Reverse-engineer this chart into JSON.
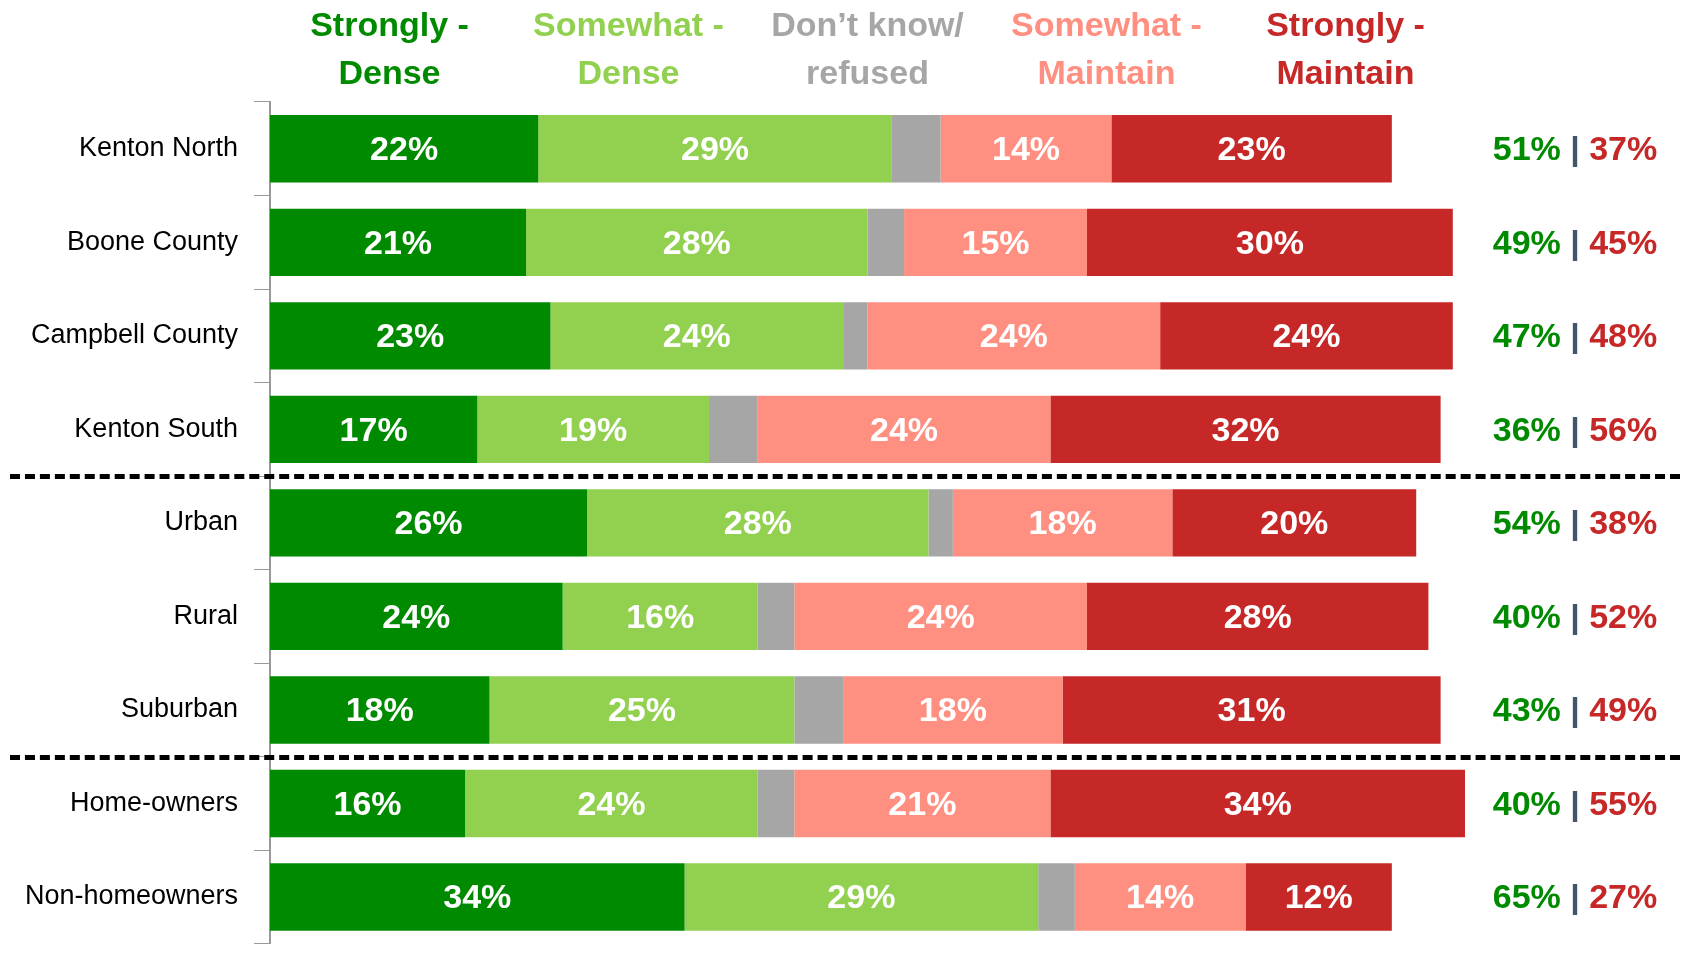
{
  "chart_data": {
    "type": "bar",
    "orientation": "horizontal",
    "stacked": true,
    "legend": "top",
    "tick_labels": "y",
    "grid": false,
    "categories": [
      "Kenton North",
      "Boone County",
      "Campbell County",
      "Kenton South",
      "Urban",
      "Rural",
      "Suburban",
      "Home-owners",
      "Non-homeowners"
    ],
    "series": [
      {
        "name": "Strongly - Dense",
        "color": "#008a00",
        "values": [
          22,
          21,
          23,
          17,
          26,
          24,
          18,
          16,
          34
        ],
        "value_labels": [
          "22%",
          "21%",
          "23%",
          "17%",
          "26%",
          "24%",
          "18%",
          "16%",
          "34%"
        ]
      },
      {
        "name": "Somewhat - Dense",
        "color": "#92d050",
        "values": [
          29,
          28,
          24,
          19,
          28,
          16,
          25,
          24,
          29
        ],
        "value_labels": [
          "29%",
          "28%",
          "24%",
          "19%",
          "28%",
          "16%",
          "25%",
          "24%",
          "29%"
        ]
      },
      {
        "name": "Don’t know/ refused",
        "color": "#a6a6a6",
        "values": [
          4,
          3,
          2,
          4,
          2,
          3,
          4,
          3,
          3
        ]
      },
      {
        "name": "Somewhat - Maintain",
        "color": "#ff8f80",
        "values": [
          14,
          15,
          24,
          24,
          18,
          24,
          18,
          21,
          14
        ],
        "value_labels": [
          "14%",
          "15%",
          "24%",
          "24%",
          "18%",
          "24%",
          "18%",
          "21%",
          "14%"
        ]
      },
      {
        "name": "Strongly - Maintain",
        "color": "#c62828",
        "values": [
          23,
          30,
          24,
          32,
          20,
          28,
          31,
          34,
          12
        ],
        "value_labels": [
          "23%",
          "30%",
          "24%",
          "32%",
          "20%",
          "28%",
          "31%",
          "34%",
          "12%"
        ]
      }
    ],
    "totals": [
      "51% | 37%",
      "49% | 45%",
      "47% | 48%",
      "36% | 56%",
      "54% | 38%",
      "40% | 52%",
      "43% | 49%",
      "40% | 55%",
      "65% | 27%"
    ]
  }
}
